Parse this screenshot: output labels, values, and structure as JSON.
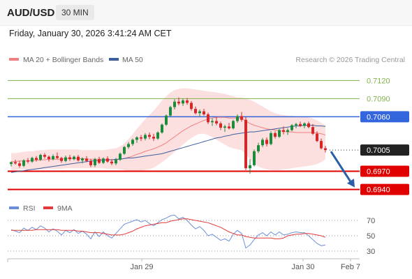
{
  "header": {
    "symbol": "AUD/USD",
    "timeframe": "30 MIN"
  },
  "datetime": "Friday, January 30, 2026 3:41:24 AM CET",
  "credit": "Research © 2026 Trading Central",
  "colors": {
    "ma20": "#f08080",
    "bollinger_fill": "#fcd9d9",
    "ma50": "#3d5f9e",
    "up": "#1e8a3c",
    "down": "#d62728",
    "pivot": "#3366dd",
    "support": "#e00000",
    "target_line": "#7fb24a",
    "arrow": "#2a5fa8",
    "rsi": "#6a8fd8",
    "rsi_ma": "#e03a3a"
  },
  "chart_data": [
    {
      "type": "line",
      "title": "",
      "legend": [
        {
          "name": "MA 20 + Bollinger Bands",
          "color": "#f08080"
        },
        {
          "name": "MA 50",
          "color": "#3d5f9e"
        }
      ],
      "legend_position": "top-left",
      "x_ticks": [
        "Jan 29",
        "Jan 30",
        "Feb 7"
      ],
      "ylim": [
        0.6928,
        0.714
      ],
      "levels": [
        {
          "value": 0.712,
          "label": "0.7120",
          "kind": "target"
        },
        {
          "value": 0.709,
          "label": "0.7090",
          "kind": "target"
        },
        {
          "value": 0.706,
          "label": "0.7060",
          "kind": "pivot"
        },
        {
          "value": 0.7005,
          "label": "0.7005",
          "kind": "last"
        },
        {
          "value": 0.697,
          "label": "0.6970",
          "kind": "support"
        },
        {
          "value": 0.694,
          "label": "0.6940",
          "kind": "support"
        }
      ],
      "candles": [
        [
          0.6982,
          0.6986,
          0.6978,
          0.6985
        ],
        [
          0.6985,
          0.6989,
          0.6981,
          0.6983
        ],
        [
          0.6983,
          0.6987,
          0.6976,
          0.6979
        ],
        [
          0.6979,
          0.699,
          0.6977,
          0.6988
        ],
        [
          0.6988,
          0.6992,
          0.6983,
          0.6986
        ],
        [
          0.6986,
          0.6994,
          0.6984,
          0.6992
        ],
        [
          0.6992,
          0.6995,
          0.6986,
          0.6989
        ],
        [
          0.6989,
          0.6999,
          0.6987,
          0.6997
        ],
        [
          0.6997,
          0.7,
          0.6991,
          0.6994
        ],
        [
          0.6994,
          0.6996,
          0.6986,
          0.699
        ],
        [
          0.699,
          0.6998,
          0.6988,
          0.6995
        ],
        [
          0.6995,
          0.7001,
          0.699,
          0.6992
        ],
        [
          0.6992,
          0.6994,
          0.6984,
          0.6987
        ],
        [
          0.6987,
          0.6996,
          0.6985,
          0.6993
        ],
        [
          0.6993,
          0.6997,
          0.6987,
          0.699
        ],
        [
          0.699,
          0.6996,
          0.6988,
          0.6994
        ],
        [
          0.6994,
          0.6997,
          0.6986,
          0.6988
        ],
        [
          0.6988,
          0.6993,
          0.6983,
          0.6991
        ],
        [
          0.6991,
          0.6995,
          0.6985,
          0.6987
        ],
        [
          0.6987,
          0.699,
          0.6977,
          0.698
        ],
        [
          0.698,
          0.6992,
          0.6977,
          0.699
        ],
        [
          0.699,
          0.6994,
          0.6982,
          0.6984
        ],
        [
          0.6984,
          0.6993,
          0.6982,
          0.6991
        ],
        [
          0.6991,
          0.6995,
          0.6984,
          0.6986
        ],
        [
          0.6986,
          0.699,
          0.698,
          0.6983
        ],
        [
          0.6983,
          0.6992,
          0.698,
          0.6989
        ],
        [
          0.6989,
          0.7001,
          0.6987,
          0.6999
        ],
        [
          0.6999,
          0.7012,
          0.6997,
          0.701
        ],
        [
          0.701,
          0.7018,
          0.7007,
          0.7015
        ],
        [
          0.7015,
          0.7024,
          0.7012,
          0.7022
        ],
        [
          0.7022,
          0.7028,
          0.7017,
          0.7026
        ],
        [
          0.7026,
          0.703,
          0.702,
          0.7024
        ],
        [
          0.7024,
          0.7033,
          0.7021,
          0.703
        ],
        [
          0.703,
          0.7034,
          0.7023,
          0.7027
        ],
        [
          0.7027,
          0.7032,
          0.702,
          0.7024
        ],
        [
          0.7024,
          0.7036,
          0.7022,
          0.7034
        ],
        [
          0.7034,
          0.7049,
          0.7032,
          0.7047
        ],
        [
          0.7047,
          0.7064,
          0.7045,
          0.7062
        ],
        [
          0.7062,
          0.7078,
          0.706,
          0.7076
        ],
        [
          0.7076,
          0.7089,
          0.7072,
          0.7085
        ],
        [
          0.7085,
          0.7092,
          0.7079,
          0.7082
        ],
        [
          0.7082,
          0.709,
          0.7078,
          0.7087
        ],
        [
          0.7087,
          0.7091,
          0.708,
          0.7083
        ],
        [
          0.7083,
          0.7086,
          0.707,
          0.7073
        ],
        [
          0.7073,
          0.7077,
          0.7064,
          0.7066
        ],
        [
          0.7066,
          0.7072,
          0.706,
          0.7069
        ],
        [
          0.7069,
          0.7073,
          0.7062,
          0.7064
        ],
        [
          0.7064,
          0.7067,
          0.7048,
          0.7051
        ],
        [
          0.7051,
          0.7057,
          0.7045,
          0.7053
        ],
        [
          0.7053,
          0.706,
          0.7046,
          0.7049
        ],
        [
          0.7049,
          0.7052,
          0.7038,
          0.7042
        ],
        [
          0.7042,
          0.7047,
          0.7035,
          0.7044
        ],
        [
          0.7044,
          0.705,
          0.7039,
          0.7041
        ],
        [
          0.7041,
          0.7055,
          0.7039,
          0.7053
        ],
        [
          0.7053,
          0.7064,
          0.705,
          0.7061
        ],
        [
          0.7061,
          0.7068,
          0.7052,
          0.7055
        ],
        [
          0.7055,
          0.706,
          0.6972,
          0.6975
        ],
        [
          0.6975,
          0.699,
          0.6966,
          0.698
        ],
        [
          0.698,
          0.7006,
          0.6978,
          0.7003
        ],
        [
          0.7003,
          0.7017,
          0.7,
          0.7013
        ],
        [
          0.7013,
          0.7025,
          0.701,
          0.7022
        ],
        [
          0.7022,
          0.7026,
          0.7011,
          0.7015
        ],
        [
          0.7015,
          0.7036,
          0.7013,
          0.7033
        ],
        [
          0.7033,
          0.7036,
          0.7024,
          0.7027
        ],
        [
          0.7027,
          0.704,
          0.7025,
          0.7038
        ],
        [
          0.7038,
          0.7044,
          0.7031,
          0.7035
        ],
        [
          0.7035,
          0.7041,
          0.703,
          0.7038
        ],
        [
          0.7038,
          0.7048,
          0.7036,
          0.7046
        ],
        [
          0.7046,
          0.705,
          0.7041,
          0.7048
        ],
        [
          0.7048,
          0.7052,
          0.7043,
          0.7045
        ],
        [
          0.7045,
          0.7051,
          0.7041,
          0.7049
        ],
        [
          0.7049,
          0.7052,
          0.7041,
          0.7043
        ],
        [
          0.7043,
          0.7048,
          0.703,
          0.7032
        ],
        [
          0.7032,
          0.7036,
          0.7018,
          0.702
        ],
        [
          0.702,
          0.7024,
          0.7006,
          0.7008
        ],
        [
          0.7008,
          0.7012,
          0.7001,
          0.7005
        ]
      ],
      "ma20": [
        0.6986,
        0.6986,
        0.6987,
        0.6987,
        0.6987,
        0.6988,
        0.6988,
        0.6989,
        0.6989,
        0.699,
        0.699,
        0.699,
        0.699,
        0.6991,
        0.6991,
        0.6991,
        0.6991,
        0.6991,
        0.699,
        0.699,
        0.699,
        0.699,
        0.699,
        0.699,
        0.6989,
        0.6989,
        0.699,
        0.6991,
        0.6993,
        0.6995,
        0.6998,
        0.7,
        0.7003,
        0.7005,
        0.7007,
        0.701,
        0.7013,
        0.7017,
        0.7022,
        0.7027,
        0.7032,
        0.7037,
        0.7041,
        0.7045,
        0.7048,
        0.7051,
        0.7054,
        0.7056,
        0.7058,
        0.7059,
        0.7059,
        0.7059,
        0.7058,
        0.7058,
        0.7058,
        0.7058,
        0.7053,
        0.7049,
        0.7046,
        0.7044,
        0.7042,
        0.704,
        0.7039,
        0.7038,
        0.7037,
        0.7036,
        0.7035,
        0.7035,
        0.7034,
        0.7034,
        0.7034,
        0.7034,
        0.7034,
        0.7033,
        0.7032,
        0.703
      ],
      "bb_upper": [
        0.7,
        0.7,
        0.7001,
        0.7002,
        0.7003,
        0.7003,
        0.7004,
        0.7005,
        0.7005,
        0.7006,
        0.7006,
        0.7006,
        0.7006,
        0.7006,
        0.7006,
        0.7006,
        0.7006,
        0.7005,
        0.7005,
        0.7005,
        0.7005,
        0.7005,
        0.7005,
        0.7006,
        0.7007,
        0.7008,
        0.7011,
        0.7016,
        0.7023,
        0.7031,
        0.704,
        0.7048,
        0.7056,
        0.7063,
        0.707,
        0.7078,
        0.7087,
        0.7094,
        0.71,
        0.7104,
        0.7106,
        0.7107,
        0.7107,
        0.7106,
        0.7105,
        0.7104,
        0.7103,
        0.7102,
        0.7101,
        0.71,
        0.7099,
        0.7098,
        0.7096,
        0.7094,
        0.7092,
        0.7092,
        0.709,
        0.7088,
        0.7085,
        0.7081,
        0.7077,
        0.7073,
        0.7069,
        0.7066,
        0.7064,
        0.7063,
        0.7062,
        0.7062,
        0.7061,
        0.7061,
        0.706,
        0.7059,
        0.7057,
        0.7054,
        0.705,
        0.7046
      ],
      "bb_lower": [
        0.6972,
        0.6972,
        0.6973,
        0.6973,
        0.6972,
        0.6972,
        0.6972,
        0.6973,
        0.6973,
        0.6974,
        0.6974,
        0.6974,
        0.6974,
        0.6975,
        0.6975,
        0.6975,
        0.6975,
        0.6975,
        0.6975,
        0.6975,
        0.6975,
        0.6975,
        0.6975,
        0.6974,
        0.6974,
        0.6974,
        0.6973,
        0.6972,
        0.697,
        0.697,
        0.697,
        0.6971,
        0.6972,
        0.6973,
        0.6976,
        0.698,
        0.6985,
        0.699,
        0.6996,
        0.7002,
        0.7008,
        0.7014,
        0.702,
        0.7025,
        0.7029,
        0.7032,
        0.7032,
        0.703,
        0.7026,
        0.7022,
        0.7018,
        0.7014,
        0.701,
        0.7008,
        0.7006,
        0.7005,
        0.6998,
        0.699,
        0.6982,
        0.6978,
        0.6975,
        0.6973,
        0.6972,
        0.6972,
        0.6972,
        0.6973,
        0.6974,
        0.6975,
        0.6976,
        0.6977,
        0.6978,
        0.6979,
        0.698,
        0.6982,
        0.6985,
        0.699
      ],
      "ma50": [
        0.6968,
        0.6969,
        0.697,
        0.6971,
        0.6972,
        0.6973,
        0.6974,
        0.6975,
        0.6976,
        0.6977,
        0.6978,
        0.6979,
        0.698,
        0.6981,
        0.6982,
        0.6983,
        0.6984,
        0.6985,
        0.6986,
        0.6987,
        0.6987,
        0.6988,
        0.6988,
        0.6989,
        0.6989,
        0.699,
        0.699,
        0.6991,
        0.6992,
        0.6992,
        0.6993,
        0.6994,
        0.6995,
        0.6996,
        0.6997,
        0.6998,
        0.6999,
        0.7001,
        0.7003,
        0.7005,
        0.7007,
        0.7009,
        0.7011,
        0.7013,
        0.7015,
        0.7017,
        0.7019,
        0.7021,
        0.7023,
        0.7025,
        0.7026,
        0.7028,
        0.7029,
        0.7031,
        0.7032,
        0.7033,
        0.7034,
        0.7035,
        0.7035,
        0.7036,
        0.7037,
        0.7038,
        0.7039,
        0.704,
        0.7041,
        0.7042,
        0.7043,
        0.7044,
        0.7045,
        0.7045,
        0.7046,
        0.7046,
        0.7046,
        0.7045,
        0.7045,
        0.7044
      ]
    },
    {
      "type": "line",
      "title": "",
      "legend": [
        {
          "name": "RSI",
          "color": "#6a8fd8"
        },
        {
          "name": "9MA",
          "color": "#e03a3a"
        }
      ],
      "legend_position": "top-left",
      "ylim": [
        20,
        80
      ],
      "y_ticks": [
        "70",
        "50",
        "30"
      ],
      "rsi": [
        58,
        56,
        54,
        60,
        57,
        61,
        58,
        63,
        60,
        55,
        59,
        56,
        51,
        57,
        54,
        58,
        53,
        56,
        52,
        46,
        55,
        49,
        55,
        50,
        47,
        53,
        59,
        65,
        67,
        69,
        71,
        68,
        70,
        66,
        63,
        67,
        71,
        73,
        76,
        77,
        72,
        74,
        70,
        64,
        59,
        62,
        57,
        50,
        52,
        48,
        44,
        46,
        43,
        52,
        57,
        53,
        34,
        38,
        45,
        51,
        54,
        50,
        55,
        51,
        55,
        51,
        52,
        54,
        55,
        54,
        54,
        50,
        45,
        40,
        37,
        38
      ],
      "rsi_ma": [
        57,
        57,
        57,
        57,
        57,
        57,
        58,
        58,
        58,
        58,
        58,
        58,
        57,
        57,
        57,
        57,
        56,
        56,
        55,
        54,
        54,
        54,
        53,
        52,
        51,
        51,
        51,
        52,
        54,
        56,
        59,
        61,
        63,
        64,
        65,
        66,
        67,
        67,
        69,
        70,
        71,
        72,
        72,
        71,
        70,
        69,
        68,
        67,
        65,
        63,
        61,
        58,
        55,
        53,
        51,
        51,
        49,
        48,
        47,
        47,
        47,
        47,
        47,
        46,
        46,
        47,
        50,
        51,
        52,
        52,
        53,
        53,
        52,
        51,
        50,
        48
      ]
    }
  ]
}
